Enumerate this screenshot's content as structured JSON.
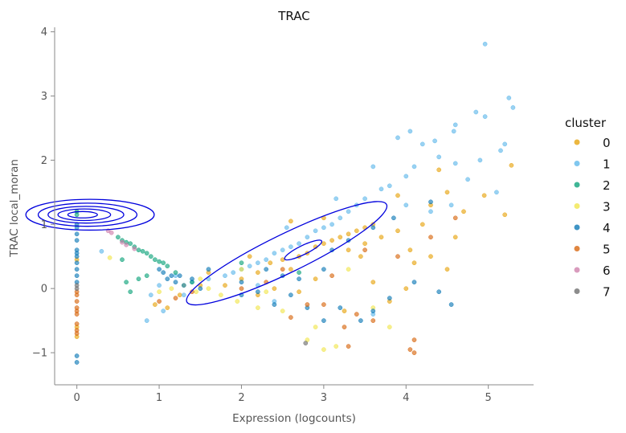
{
  "chart_data": {
    "type": "scatter",
    "title": "TRAC",
    "xlabel": "Expression (logcounts)",
    "ylabel": "TRAC local_moran",
    "xlim": [
      -0.27,
      5.55
    ],
    "ylim": [
      -1.5,
      4.07
    ],
    "xticks": [
      0,
      1,
      2,
      3,
      4,
      5
    ],
    "yticks": [
      -1,
      0,
      1,
      2,
      3,
      4
    ],
    "xtick_labels": [
      "0",
      "1",
      "2",
      "3",
      "4",
      "5"
    ],
    "ytick_labels": [
      "−1",
      "0",
      "1",
      "2",
      "3",
      "4"
    ],
    "grid": false,
    "legend": {
      "title": "cluster",
      "position": "right",
      "entries": [
        {
          "label": "0",
          "color": "#E69F00"
        },
        {
          "label": "1",
          "color": "#56B4E9"
        },
        {
          "label": "2",
          "color": "#009E73"
        },
        {
          "label": "3",
          "color": "#F0E442"
        },
        {
          "label": "4",
          "color": "#0072B2"
        },
        {
          "label": "5",
          "color": "#D55E00"
        },
        {
          "label": "6",
          "color": "#CC79A7"
        },
        {
          "label": "7",
          "color": "#666666"
        }
      ]
    },
    "series": [
      {
        "name": "0",
        "color": "#E69F00",
        "points": [
          [
            0,
            -0.6
          ],
          [
            0,
            -0.75
          ],
          [
            0,
            0.45
          ],
          [
            0.95,
            -0.25
          ],
          [
            1.1,
            -0.3
          ],
          [
            1.25,
            -0.1
          ],
          [
            1.5,
            0.05
          ],
          [
            1.8,
            0.05
          ],
          [
            2.0,
            0.15
          ],
          [
            2.2,
            0.25
          ],
          [
            2.35,
            0.4
          ],
          [
            2.5,
            0.45
          ],
          [
            2.6,
            0.3
          ],
          [
            2.7,
            0.5
          ],
          [
            2.8,
            0.55
          ],
          [
            2.9,
            0.65
          ],
          [
            3.0,
            0.7
          ],
          [
            3.1,
            0.75
          ],
          [
            3.2,
            0.8
          ],
          [
            3.3,
            0.85
          ],
          [
            3.4,
            0.9
          ],
          [
            3.5,
            0.95
          ],
          [
            3.6,
            1.0
          ],
          [
            3.3,
            0.6
          ],
          [
            3.5,
            0.7
          ],
          [
            3.7,
            0.8
          ],
          [
            3.9,
            0.9
          ],
          [
            4.05,
            0.6
          ],
          [
            4.1,
            0.4
          ],
          [
            4.3,
            0.5
          ],
          [
            4.5,
            0.3
          ],
          [
            4.3,
            1.3
          ],
          [
            4.5,
            1.5
          ],
          [
            4.7,
            1.2
          ],
          [
            4.95,
            1.45
          ],
          [
            5.28,
            1.92
          ],
          [
            5.2,
            1.15
          ],
          [
            2.6,
            1.05
          ],
          [
            3.9,
            1.45
          ],
          [
            4.4,
            1.85
          ],
          [
            3.6,
            0.1
          ],
          [
            4.0,
            0.0
          ],
          [
            3.25,
            -0.35
          ],
          [
            2.9,
            0.15
          ],
          [
            2.4,
            0.0
          ],
          [
            3.8,
            -0.2
          ],
          [
            2.1,
            0.5
          ],
          [
            2.7,
            -0.05
          ],
          [
            3.45,
            0.5
          ],
          [
            4.2,
            1.0
          ],
          [
            4.6,
            0.8
          ],
          [
            1.6,
            0.25
          ],
          [
            3.0,
            1.1
          ],
          [
            2.2,
            -0.1
          ]
        ]
      },
      {
        "name": "1",
        "color": "#56B4E9",
        "points": [
          [
            4.96,
            3.81
          ],
          [
            5.25,
            2.97
          ],
          [
            5.3,
            2.82
          ],
          [
            4.85,
            2.75
          ],
          [
            4.96,
            2.68
          ],
          [
            4.6,
            2.55
          ],
          [
            4.2,
            2.25
          ],
          [
            4.4,
            2.05
          ],
          [
            4.1,
            1.9
          ],
          [
            4.0,
            1.75
          ],
          [
            3.8,
            1.6
          ],
          [
            3.7,
            1.55
          ],
          [
            3.5,
            1.4
          ],
          [
            3.4,
            1.3
          ],
          [
            3.3,
            1.2
          ],
          [
            3.2,
            1.1
          ],
          [
            3.1,
            1.0
          ],
          [
            3.0,
            0.95
          ],
          [
            2.9,
            0.9
          ],
          [
            2.8,
            0.8
          ],
          [
            2.7,
            0.7
          ],
          [
            2.6,
            0.65
          ],
          [
            2.5,
            0.6
          ],
          [
            2.4,
            0.55
          ],
          [
            2.3,
            0.45
          ],
          [
            2.2,
            0.4
          ],
          [
            2.1,
            0.35
          ],
          [
            2.0,
            0.3
          ],
          [
            1.9,
            0.25
          ],
          [
            1.8,
            0.2
          ],
          [
            1.6,
            0.15
          ],
          [
            1.4,
            0.1
          ],
          [
            1.2,
            0.2
          ],
          [
            1.0,
            0.05
          ],
          [
            0.9,
            -0.1
          ],
          [
            0.85,
            -0.5
          ],
          [
            1.05,
            -0.35
          ],
          [
            1.3,
            -0.1
          ],
          [
            0.3,
            0.58
          ],
          [
            4.9,
            2.0
          ],
          [
            4.75,
            1.7
          ],
          [
            5.1,
            1.5
          ],
          [
            5.15,
            2.15
          ],
          [
            5.2,
            2.25
          ],
          [
            4.6,
            1.95
          ],
          [
            4.55,
            1.3
          ],
          [
            4.3,
            1.2
          ],
          [
            4.0,
            1.3
          ],
          [
            3.9,
            2.35
          ],
          [
            4.05,
            2.45
          ],
          [
            3.6,
            1.9
          ],
          [
            3.15,
            1.4
          ],
          [
            2.55,
            0.95
          ],
          [
            2.2,
            0.05
          ],
          [
            2.4,
            -0.2
          ],
          [
            3.6,
            -0.4
          ],
          [
            4.58,
            2.45
          ],
          [
            4.35,
            2.3
          ]
        ]
      },
      {
        "name": "2",
        "color": "#009E73",
        "points": [
          [
            0,
            1.15
          ],
          [
            0,
            1.2
          ],
          [
            0.5,
            0.8
          ],
          [
            0.55,
            0.75
          ],
          [
            0.6,
            0.72
          ],
          [
            0.65,
            0.7
          ],
          [
            0.7,
            0.65
          ],
          [
            0.75,
            0.6
          ],
          [
            0.8,
            0.58
          ],
          [
            0.85,
            0.55
          ],
          [
            0.9,
            0.5
          ],
          [
            0.95,
            0.45
          ],
          [
            1.0,
            0.42
          ],
          [
            1.05,
            0.4
          ],
          [
            1.1,
            0.35
          ],
          [
            0.6,
            0.1
          ],
          [
            0.65,
            -0.05
          ],
          [
            0.75,
            0.15
          ],
          [
            1.2,
            0.25
          ],
          [
            2.7,
            0.25
          ],
          [
            2.0,
            0.4
          ],
          [
            1.4,
            0.1
          ],
          [
            0.85,
            0.2
          ],
          [
            0.55,
            0.45
          ]
        ]
      },
      {
        "name": "3",
        "color": "#F0E442",
        "points": [
          [
            0.4,
            0.48
          ],
          [
            1.0,
            -0.05
          ],
          [
            1.15,
            0.0
          ],
          [
            1.3,
            0.05
          ],
          [
            1.45,
            -0.05
          ],
          [
            1.6,
            0.0
          ],
          [
            1.75,
            -0.1
          ],
          [
            1.95,
            -0.2
          ],
          [
            2.2,
            -0.3
          ],
          [
            2.5,
            -0.35
          ],
          [
            2.9,
            -0.6
          ],
          [
            3.0,
            -0.95
          ],
          [
            3.15,
            -0.9
          ],
          [
            2.8,
            -0.8
          ],
          [
            3.6,
            -0.3
          ],
          [
            3.8,
            -0.6
          ],
          [
            2.0,
            0.3
          ],
          [
            1.5,
            0.15
          ],
          [
            2.3,
            -0.05
          ],
          [
            3.3,
            0.3
          ]
        ]
      },
      {
        "name": "4",
        "color": "#0072B2",
        "points": [
          [
            0,
            0.75
          ],
          [
            0,
            0.6
          ],
          [
            0,
            0.55
          ],
          [
            0,
            0.5
          ],
          [
            0,
            0.4
          ],
          [
            0,
            0.3
          ],
          [
            0,
            0.2
          ],
          [
            0,
            0.1
          ],
          [
            0,
            0.85
          ],
          [
            0,
            0.95
          ],
          [
            0,
            1.0
          ],
          [
            1.0,
            0.3
          ],
          [
            1.05,
            0.25
          ],
          [
            1.1,
            0.15
          ],
          [
            1.15,
            0.2
          ],
          [
            1.2,
            0.1
          ],
          [
            1.25,
            0.2
          ],
          [
            1.3,
            0.05
          ],
          [
            1.4,
            0.15
          ],
          [
            1.5,
            0.0
          ],
          [
            2.0,
            -0.1
          ],
          [
            2.2,
            -0.05
          ],
          [
            2.4,
            -0.25
          ],
          [
            2.6,
            -0.1
          ],
          [
            2.8,
            -0.3
          ],
          [
            3.0,
            -0.5
          ],
          [
            3.2,
            -0.3
          ],
          [
            3.45,
            -0.5
          ],
          [
            3.6,
            -0.35
          ],
          [
            3.8,
            -0.15
          ],
          [
            4.1,
            0.1
          ],
          [
            4.4,
            -0.05
          ],
          [
            4.55,
            -0.25
          ],
          [
            2.3,
            0.3
          ],
          [
            2.5,
            0.2
          ],
          [
            3.1,
            0.6
          ],
          [
            3.3,
            0.75
          ],
          [
            3.6,
            0.95
          ],
          [
            3.85,
            1.1
          ],
          [
            4.3,
            1.35
          ],
          [
            0,
            -1.15
          ],
          [
            0,
            -1.05
          ],
          [
            1.6,
            0.3
          ],
          [
            2.0,
            0.1
          ],
          [
            2.7,
            0.15
          ],
          [
            3.0,
            0.3
          ]
        ]
      },
      {
        "name": "5",
        "color": "#D55E00",
        "points": [
          [
            0,
            -0.05
          ],
          [
            0,
            -0.1
          ],
          [
            0,
            -0.2
          ],
          [
            0,
            -0.3
          ],
          [
            0,
            -0.35
          ],
          [
            0,
            -0.4
          ],
          [
            0,
            -0.55
          ],
          [
            0,
            -0.65
          ],
          [
            0,
            -0.7
          ],
          [
            1.0,
            -0.2
          ],
          [
            1.2,
            -0.15
          ],
          [
            1.4,
            -0.05
          ],
          [
            2.0,
            0.0
          ],
          [
            2.3,
            0.1
          ],
          [
            2.8,
            -0.25
          ],
          [
            3.0,
            -0.25
          ],
          [
            3.4,
            -0.4
          ],
          [
            3.6,
            -0.5
          ],
          [
            3.3,
            -0.9
          ],
          [
            4.1,
            -0.8
          ],
          [
            4.05,
            -0.95
          ],
          [
            4.1,
            -1.0
          ],
          [
            3.25,
            -0.6
          ],
          [
            2.6,
            -0.45
          ],
          [
            3.1,
            0.2
          ],
          [
            3.5,
            0.6
          ],
          [
            2.5,
            0.3
          ],
          [
            4.3,
            0.8
          ],
          [
            4.6,
            1.1
          ],
          [
            3.9,
            0.5
          ]
        ]
      },
      {
        "name": "6",
        "color": "#CC79A7",
        "points": [
          [
            0.38,
            0.9
          ],
          [
            0.42,
            0.87
          ],
          [
            0.55,
            0.72
          ],
          [
            0.6,
            0.68
          ],
          [
            0.7,
            0.62
          ]
        ]
      },
      {
        "name": "7",
        "color": "#666666",
        "points": [
          [
            2.78,
            -0.85
          ],
          [
            0,
            0.0
          ],
          [
            0,
            0.05
          ]
        ]
      }
    ],
    "contours": [
      {
        "cx": 0.16,
        "cy": 1.15,
        "rx": 0.78,
        "ry": 0.24
      },
      {
        "cx": 0.13,
        "cy": 1.15,
        "rx": 0.6,
        "ry": 0.18
      },
      {
        "cx": 0.11,
        "cy": 1.15,
        "rx": 0.46,
        "ry": 0.13
      },
      {
        "cx": 0.09,
        "cy": 1.15,
        "rx": 0.32,
        "ry": 0.09
      },
      {
        "cx": 0.07,
        "cy": 1.15,
        "rx": 0.18,
        "ry": 0.05
      }
    ]
  }
}
